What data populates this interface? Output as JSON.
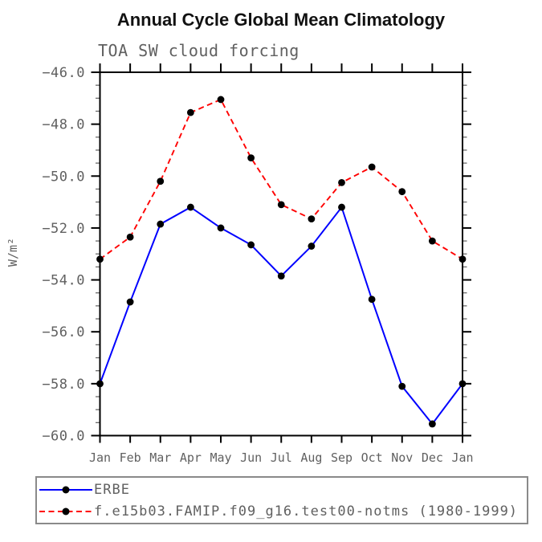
{
  "chart": {
    "title": "Annual Cycle Global Mean Climatology",
    "subtitle": "TOA SW cloud forcing"
  },
  "chart_data": {
    "type": "line",
    "title": "Annual Cycle Global Mean Climatology",
    "subtitle": "TOA SW cloud forcing",
    "xlabel": "",
    "ylabel": "W/m²",
    "categories": [
      "Jan",
      "Feb",
      "Mar",
      "Apr",
      "May",
      "Jun",
      "Jul",
      "Aug",
      "Sep",
      "Oct",
      "Nov",
      "Dec",
      "Jan"
    ],
    "ylim": [
      -60.0,
      -46.0
    ],
    "ytick_major_interval": 2.0,
    "ytick_minor_interval": 0.5,
    "ytick_labels": [
      "−46.0",
      "−48.0",
      "−50.0",
      "−52.0",
      "−54.0",
      "−56.0",
      "−58.0",
      "−60.0"
    ],
    "grid": false,
    "legend_position": "bottom",
    "axis_color": "#000000",
    "tick_label_color": "#606060",
    "marker_color": "#000000",
    "series": [
      {
        "name": "ERBE",
        "color": "#0000ff",
        "style": "solid",
        "marker": "circle",
        "values": [
          -58.0,
          -54.85,
          -51.85,
          -51.2,
          -52.0,
          -52.65,
          -53.85,
          -52.7,
          -51.2,
          -54.75,
          -58.1,
          -59.55,
          -58.0
        ]
      },
      {
        "name": "f.e15b03.FAMIP.f09_g16.test00-notms (1980-1999)",
        "color": "#ff0000",
        "style": "dashed",
        "marker": "circle",
        "values": [
          -53.2,
          -52.35,
          -50.2,
          -47.55,
          -47.05,
          -49.3,
          -51.1,
          -51.65,
          -50.25,
          -49.65,
          -50.6,
          -52.5,
          -53.2
        ]
      }
    ]
  }
}
